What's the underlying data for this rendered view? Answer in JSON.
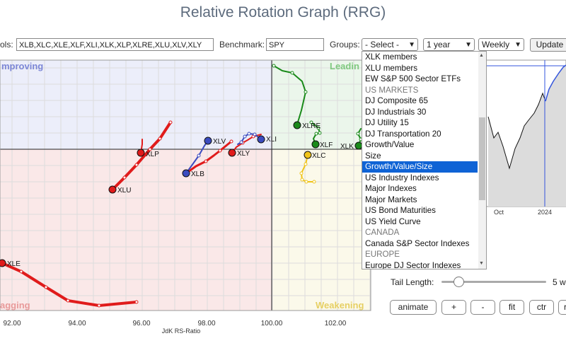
{
  "title": "Relative Rotation Graph (RRG)",
  "toolbar": {
    "symbols_label": "ols:",
    "symbols_value": "XLB,XLC,XLE,XLF,XLI,XLK,XLP,XLRE,XLU,XLV,XLY",
    "benchmark_label": "Benchmark:",
    "benchmark_value": "SPY",
    "groups_label": "Groups:",
    "groups_selected": "- Select -",
    "period_selected": "1 year",
    "interval_selected": "Weekly",
    "update_label": "Update"
  },
  "quadrants": {
    "improving": "mproving",
    "leading": "Leadin",
    "lagging": "agging",
    "weakening": "Weakening"
  },
  "axis": {
    "xlabel": "JdK RS-Ratio",
    "x_ticks": [
      "92.00",
      "94.00",
      "96.00",
      "98.00",
      "100.00",
      "102.00"
    ]
  },
  "tickers": [
    {
      "label": "XLV",
      "color": "#3b4cc0"
    },
    {
      "label": "XLI",
      "color": "#3b4cc0"
    },
    {
      "label": "XLP",
      "color": "#e01b1b"
    },
    {
      "label": "XLY",
      "color": "#e01b1b"
    },
    {
      "label": "XLB",
      "color": "#3b4cc0"
    },
    {
      "label": "XLU",
      "color": "#e01b1b"
    },
    {
      "label": "XLE",
      "color": "#e01b1b"
    },
    {
      "label": "XLRE",
      "color": "#1a8a1a"
    },
    {
      "label": "XLF",
      "color": "#1a8a1a"
    },
    {
      "label": "XLK",
      "color": "#1a8a1a"
    },
    {
      "label": "XLC",
      "color": "#f0c419"
    }
  ],
  "dropdown": {
    "options": [
      {
        "label": "XLK members",
        "kind": "option"
      },
      {
        "label": "XLU members",
        "kind": "option"
      },
      {
        "label": "EW S&P 500 Sector ETFs",
        "kind": "option"
      },
      {
        "label": "US MARKETS",
        "kind": "group"
      },
      {
        "label": "DJ Composite 65",
        "kind": "option"
      },
      {
        "label": "DJ Industrials 30",
        "kind": "option"
      },
      {
        "label": "DJ Utility 15",
        "kind": "option"
      },
      {
        "label": "DJ Transportation 20",
        "kind": "option"
      },
      {
        "label": "Growth/Value",
        "kind": "option"
      },
      {
        "label": "Size",
        "kind": "option"
      },
      {
        "label": "Growth/Value/Size",
        "kind": "selected"
      },
      {
        "label": "US Industry Indexes",
        "kind": "option"
      },
      {
        "label": "Major Indexes",
        "kind": "option"
      },
      {
        "label": "Major Markets",
        "kind": "option"
      },
      {
        "label": "US Bond Maturities",
        "kind": "option"
      },
      {
        "label": "US Yield Curve",
        "kind": "option"
      },
      {
        "label": "CANADA",
        "kind": "group"
      },
      {
        "label": "Canada S&P Sector Indexes",
        "kind": "option"
      },
      {
        "label": "EUROPE",
        "kind": "group"
      },
      {
        "label": "Europe DJ Sector Indexes",
        "kind": "option"
      }
    ]
  },
  "price_chart": {
    "x_labels": [
      "Oct",
      "2024"
    ],
    "colors": {
      "line": "#111111",
      "highlight": "#3355dd",
      "fill": "#dcdcdc"
    }
  },
  "tail_length": {
    "label": "Tail Length:",
    "value": "5 w"
  },
  "buttons": {
    "animate": "animate",
    "plus": "+",
    "minus": "-",
    "fit": "fit",
    "ctr": "ctr",
    "r": "r"
  }
}
